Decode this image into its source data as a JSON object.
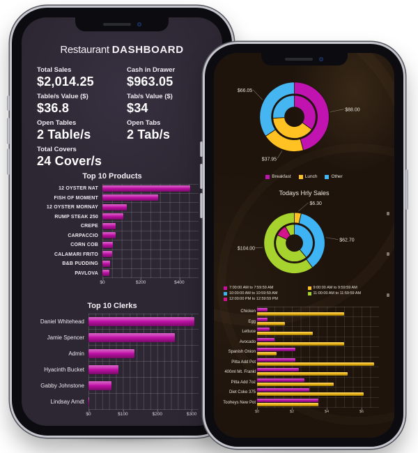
{
  "app": {
    "background": "#ffffff"
  },
  "left_phone": {
    "title": {
      "regular": "Restaurant",
      "bold": "DASHBOARD"
    },
    "stats": [
      {
        "label": "Total Sales",
        "value": "$2,014.25"
      },
      {
        "label": "Cash in Drawer",
        "value": "$963.05"
      },
      {
        "label": "Table/s Value ($)",
        "value": "$36.8"
      },
      {
        "label": "Tab/s Value ($)",
        "value": "$34"
      },
      {
        "label": "Open Tables",
        "value": "2 Table/s"
      },
      {
        "label": "Open Tabs",
        "value": "2 Tab/s"
      },
      {
        "label": "Total Covers",
        "value": "24 Cover/s"
      }
    ]
  },
  "chart_data": [
    {
      "id": "top_products",
      "type": "bar",
      "orientation": "horizontal",
      "title": "Top 10 Products",
      "categories": [
        "12 OYSTER NAT",
        "FISH OF MOMENT",
        "12 OYSTER MORNAY",
        "RUMP STEAK 250",
        "CREPE",
        "CARPACCIO",
        "CORN COB",
        "CALAMARI FRITO",
        "B&B PUDDING",
        "PAVLOVA"
      ],
      "values": [
        455,
        290,
        128,
        110,
        68,
        68,
        53,
        50,
        39,
        36
      ],
      "xlim": [
        0,
        500
      ],
      "grid_step": 50,
      "grid": true,
      "bar_color": "#c312aa",
      "xticks": [
        {
          "label": "$0",
          "value": 0
        },
        {
          "label": "$200",
          "value": 200
        },
        {
          "label": "$400",
          "value": 400
        }
      ]
    },
    {
      "id": "top_clerks",
      "type": "bar",
      "orientation": "horizontal",
      "title": "Top 10 Clerks",
      "categories": [
        "Daniel Whitehead",
        "Jamie Spencer",
        "Admin",
        "Hyacinth Bucket",
        "Gabby Johnstone",
        "Lindsay Arndt"
      ],
      "values": [
        308,
        252,
        133,
        88,
        66,
        2
      ],
      "xlim": [
        0,
        320
      ],
      "grid_step": 20,
      "grid": true,
      "bar_color": "#c312aa",
      "xticks": [
        {
          "label": "$0",
          "value": 0
        },
        {
          "label": "$100",
          "value": 100
        },
        {
          "label": "$200",
          "value": 200
        },
        {
          "label": "$300",
          "value": 300
        }
      ]
    },
    {
      "id": "meal_sales_donut",
      "type": "pie",
      "subtype": "double-ring-donut",
      "legend_position": "bottom",
      "legend": [
        {
          "label": "Breakfast",
          "color": "#c013b0"
        },
        {
          "label": "Lunch",
          "color": "#ffc222"
        },
        {
          "label": "Other",
          "color": "#45b6f2"
        }
      ],
      "rings": {
        "outer": {
          "values": [
            88.0,
            37.95,
            66.05
          ],
          "colors": [
            "#c013b0",
            "#ffc222",
            "#45b6f2"
          ]
        },
        "inner": {
          "values": [
            35,
            39,
            26
          ],
          "colors": [
            "#c013b0",
            "#ffc222",
            "#45b6f2"
          ]
        }
      },
      "labels": [
        {
          "text": "$88.00",
          "angle": 82,
          "x": 189,
          "y": 79
        },
        {
          "text": "$37.95",
          "angle": 200,
          "x": 69,
          "y": 150
        },
        {
          "text": "$66.05",
          "angle": 298,
          "x": 34,
          "y": 51
        }
      ]
    },
    {
      "id": "hourly_sales_donut",
      "type": "pie",
      "subtype": "double-ring-donut",
      "title": "Todays Hrly Sales",
      "legend_position": "bottom",
      "legend": [
        {
          "label": "7:00:00 AM to 7:59:59 AM",
          "color": "#cc0f9e"
        },
        {
          "label": "9:00:00 AM to 9:59:59 AM",
          "color": "#ffc222"
        },
        {
          "label": "10:00:00 AM to 10:59:59 AM",
          "color": "#3fb4f5"
        },
        {
          "label": "11:00:00 AM to 11:59:59 AM",
          "color": "#a6d32e"
        },
        {
          "label": "12:00:00 PM to 12:59:59 PM",
          "color": "#d4148c"
        }
      ],
      "rings": {
        "outer": {
          "values": [
            6.3,
            62.7,
            104.0
          ],
          "colors": [
            "#ffc222",
            "#3fb4f5",
            "#a6d32e"
          ]
        },
        "inner": {
          "values": [
            39,
            43,
            10,
            8
          ],
          "colors": [
            "#3fb4f5",
            "#a6d32e",
            "#d4148c",
            "#a6d32e"
          ]
        }
      },
      "labels": [
        {
          "text": "$6.30",
          "angle": 7,
          "x": 138,
          "y": 19
        },
        {
          "text": "$62.70",
          "angle": 80,
          "x": 181,
          "y": 72
        },
        {
          "text": "$104.00",
          "angle": 262,
          "x": 34,
          "y": 84
        }
      ]
    },
    {
      "id": "top_items",
      "type": "bar",
      "orientation": "horizontal",
      "grouped": true,
      "categories": [
        "Chicken",
        "Egg",
        "Lettuce",
        "Avocado",
        "Spanish Onion",
        "Pitta Add Pot",
        "400ml Mt. Frankl",
        "Pitta Add 7oz",
        "Diet Coke 375",
        "Tooheys New Pot"
      ],
      "series": [
        {
          "color": "#c013b0",
          "values": [
            0.6,
            0.6,
            0.7,
            1.0,
            2.2,
            2.2,
            2.4,
            2.7,
            3.0,
            3.5
          ]
        },
        {
          "color": "#f2bb13",
          "values": [
            5.0,
            1.6,
            3.2,
            5.0,
            1.1,
            6.7,
            5.2,
            4.4,
            6.1,
            3.5
          ]
        }
      ],
      "xlim": [
        0,
        7
      ],
      "grid_step": 0.5,
      "grid": true,
      "xticks": [
        {
          "label": "$0",
          "value": 0
        },
        {
          "label": "$2",
          "value": 2
        },
        {
          "label": "$4",
          "value": 4
        },
        {
          "label": "$6",
          "value": 6
        }
      ]
    }
  ]
}
